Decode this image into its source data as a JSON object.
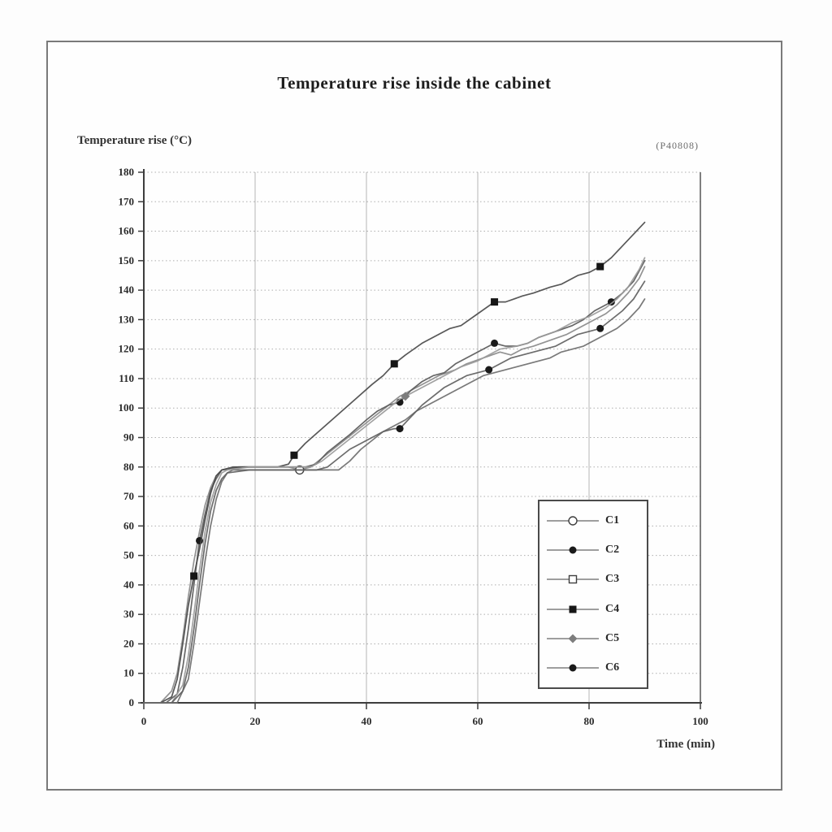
{
  "chart_data": {
    "type": "line",
    "title": "Temperature rise inside the cabinet",
    "ylabel": "Temperature rise (°C)",
    "xlabel": "Time (min)",
    "annotation": "(P40808)",
    "xlim": [
      0,
      100
    ],
    "ylim": [
      0,
      180
    ],
    "x_ticks": [
      0,
      20,
      40,
      60,
      80,
      100
    ],
    "y_tick_step": 10,
    "grid": {
      "vertical_every": 20,
      "horizontal_every": 10,
      "horizontal_style": "dotted"
    },
    "legend_position": "inside-lower-right",
    "series": [
      {
        "name": "C1",
        "marker": "open-circle",
        "color": "#8a8a8a",
        "points": [
          [
            0,
            0
          ],
          [
            3,
            0
          ],
          [
            5,
            4
          ],
          [
            6,
            10
          ],
          [
            7,
            22
          ],
          [
            8,
            36
          ],
          [
            9,
            48
          ],
          [
            10,
            58
          ],
          [
            11,
            67
          ],
          [
            12,
            73
          ],
          [
            13,
            77
          ],
          [
            14,
            79
          ],
          [
            18,
            80
          ],
          [
            22,
            80
          ],
          [
            26,
            80
          ],
          [
            28,
            79
          ],
          [
            30,
            80
          ],
          [
            32,
            83
          ],
          [
            34,
            86
          ],
          [
            36,
            89
          ],
          [
            38,
            92
          ],
          [
            40,
            95
          ],
          [
            42,
            98
          ],
          [
            44,
            101
          ],
          [
            46,
            104
          ],
          [
            48,
            106
          ],
          [
            50,
            108
          ],
          [
            53,
            111
          ],
          [
            56,
            113
          ],
          [
            58,
            115
          ],
          [
            61,
            117
          ],
          [
            64,
            119
          ],
          [
            66,
            118
          ],
          [
            68,
            120
          ],
          [
            70,
            121
          ],
          [
            73,
            123
          ],
          [
            76,
            125
          ],
          [
            79,
            128
          ],
          [
            81,
            130
          ],
          [
            83,
            132
          ],
          [
            85,
            135
          ],
          [
            87,
            139
          ],
          [
            89,
            144
          ],
          [
            90,
            148
          ]
        ],
        "marker_points": [
          [
            28,
            79
          ]
        ]
      },
      {
        "name": "C2",
        "marker": "filled-circle",
        "color": "#5a5a5a",
        "points": [
          [
            0,
            0
          ],
          [
            4,
            0
          ],
          [
            6,
            3
          ],
          [
            7,
            12
          ],
          [
            8,
            25
          ],
          [
            9,
            40
          ],
          [
            10,
            55
          ],
          [
            11,
            64
          ],
          [
            12,
            72
          ],
          [
            13,
            76
          ],
          [
            14,
            79
          ],
          [
            17,
            80
          ],
          [
            21,
            80
          ],
          [
            25,
            80
          ],
          [
            29,
            80
          ],
          [
            31,
            81
          ],
          [
            33,
            85
          ],
          [
            35,
            88
          ],
          [
            37,
            91
          ],
          [
            40,
            96
          ],
          [
            42,
            99
          ],
          [
            44,
            101
          ],
          [
            46,
            102
          ],
          [
            48,
            106
          ],
          [
            50,
            109
          ],
          [
            52,
            111
          ],
          [
            54,
            112
          ],
          [
            56,
            115
          ],
          [
            58,
            117
          ],
          [
            60,
            119
          ],
          [
            62,
            121
          ],
          [
            63,
            122
          ],
          [
            65,
            121
          ],
          [
            67,
            121
          ],
          [
            69,
            122
          ],
          [
            71,
            124
          ],
          [
            74,
            126
          ],
          [
            77,
            128
          ],
          [
            79,
            130
          ],
          [
            81,
            133
          ],
          [
            84,
            136
          ],
          [
            86,
            139
          ],
          [
            88,
            143
          ],
          [
            90,
            150
          ]
        ],
        "marker_points": [
          [
            10,
            55
          ],
          [
            46,
            102
          ],
          [
            63,
            122
          ],
          [
            84,
            136
          ]
        ]
      },
      {
        "name": "C3",
        "marker": "open-square",
        "color": "#6e6e6e",
        "points": [
          [
            0,
            0
          ],
          [
            6,
            0
          ],
          [
            8,
            8
          ],
          [
            9,
            20
          ],
          [
            10,
            34
          ],
          [
            11,
            48
          ],
          [
            12,
            60
          ],
          [
            13,
            69
          ],
          [
            14,
            75
          ],
          [
            15,
            78
          ],
          [
            16,
            79
          ],
          [
            20,
            79
          ],
          [
            24,
            79
          ],
          [
            28,
            79
          ],
          [
            32,
            79
          ],
          [
            35,
            79
          ],
          [
            37,
            82
          ],
          [
            39,
            86
          ],
          [
            41,
            89
          ],
          [
            43,
            92
          ],
          [
            45,
            94
          ],
          [
            47,
            96
          ],
          [
            49,
            99
          ],
          [
            51,
            101
          ],
          [
            53,
            103
          ],
          [
            55,
            105
          ],
          [
            57,
            107
          ],
          [
            59,
            109
          ],
          [
            61,
            111
          ],
          [
            63,
            112
          ],
          [
            65,
            113
          ],
          [
            67,
            114
          ],
          [
            69,
            115
          ],
          [
            71,
            116
          ],
          [
            73,
            117
          ],
          [
            75,
            119
          ],
          [
            77,
            120
          ],
          [
            79,
            121
          ],
          [
            81,
            123
          ],
          [
            83,
            125
          ],
          [
            85,
            127
          ],
          [
            87,
            130
          ],
          [
            89,
            134
          ],
          [
            90,
            137
          ]
        ],
        "marker_points": []
      },
      {
        "name": "C4",
        "marker": "filled-square",
        "color": "#4a4a4a",
        "points": [
          [
            0,
            0
          ],
          [
            3,
            0
          ],
          [
            5,
            2
          ],
          [
            6,
            8
          ],
          [
            7,
            20
          ],
          [
            8,
            33
          ],
          [
            9,
            43
          ],
          [
            10,
            52
          ],
          [
            11,
            62
          ],
          [
            12,
            71
          ],
          [
            13,
            77
          ],
          [
            14,
            79
          ],
          [
            16,
            80
          ],
          [
            20,
            80
          ],
          [
            24,
            80
          ],
          [
            26,
            81
          ],
          [
            27,
            84
          ],
          [
            29,
            88
          ],
          [
            32,
            93
          ],
          [
            35,
            98
          ],
          [
            38,
            103
          ],
          [
            41,
            108
          ],
          [
            43,
            111
          ],
          [
            45,
            115
          ],
          [
            47,
            118
          ],
          [
            50,
            122
          ],
          [
            52,
            124
          ],
          [
            55,
            127
          ],
          [
            57,
            128
          ],
          [
            60,
            132
          ],
          [
            63,
            136
          ],
          [
            65,
            136
          ],
          [
            68,
            138
          ],
          [
            70,
            139
          ],
          [
            73,
            141
          ],
          [
            75,
            142
          ],
          [
            78,
            145
          ],
          [
            80,
            146
          ],
          [
            82,
            148
          ],
          [
            84,
            151
          ],
          [
            86,
            155
          ],
          [
            88,
            159
          ],
          [
            90,
            163
          ]
        ],
        "marker_points": [
          [
            9,
            43
          ],
          [
            27,
            84
          ],
          [
            45,
            115
          ],
          [
            63,
            136
          ],
          [
            82,
            148
          ]
        ]
      },
      {
        "name": "C5",
        "marker": "filled-diamond",
        "color": "#9a9a9a",
        "points": [
          [
            0,
            0
          ],
          [
            5,
            0
          ],
          [
            7,
            6
          ],
          [
            8,
            16
          ],
          [
            9,
            30
          ],
          [
            10,
            45
          ],
          [
            11,
            58
          ],
          [
            12,
            68
          ],
          [
            13,
            74
          ],
          [
            14,
            78
          ],
          [
            15,
            79
          ],
          [
            19,
            80
          ],
          [
            23,
            80
          ],
          [
            27,
            80
          ],
          [
            30,
            80
          ],
          [
            32,
            82
          ],
          [
            34,
            85
          ],
          [
            36,
            88
          ],
          [
            38,
            91
          ],
          [
            40,
            94
          ],
          [
            42,
            97
          ],
          [
            44,
            100
          ],
          [
            46,
            103
          ],
          [
            47,
            104
          ],
          [
            49,
            106
          ],
          [
            51,
            108
          ],
          [
            54,
            111
          ],
          [
            57,
            114
          ],
          [
            60,
            116
          ],
          [
            62,
            118
          ],
          [
            64,
            120
          ],
          [
            67,
            121
          ],
          [
            69,
            122
          ],
          [
            71,
            124
          ],
          [
            74,
            126
          ],
          [
            77,
            129
          ],
          [
            80,
            131
          ],
          [
            83,
            134
          ],
          [
            85,
            137
          ],
          [
            87,
            141
          ],
          [
            89,
            147
          ],
          [
            90,
            151
          ]
        ],
        "marker_points": [
          [
            47,
            104
          ]
        ]
      },
      {
        "name": "C6",
        "marker": "filled-circle",
        "color": "#606060",
        "points": [
          [
            0,
            0
          ],
          [
            5,
            0
          ],
          [
            7,
            4
          ],
          [
            8,
            12
          ],
          [
            9,
            25
          ],
          [
            10,
            40
          ],
          [
            11,
            54
          ],
          [
            12,
            65
          ],
          [
            13,
            72
          ],
          [
            14,
            76
          ],
          [
            15,
            78
          ],
          [
            19,
            79
          ],
          [
            23,
            79
          ],
          [
            27,
            79
          ],
          [
            31,
            79
          ],
          [
            33,
            80
          ],
          [
            35,
            83
          ],
          [
            37,
            86
          ],
          [
            39,
            88
          ],
          [
            41,
            90
          ],
          [
            43,
            92
          ],
          [
            45,
            93
          ],
          [
            46,
            93
          ],
          [
            48,
            97
          ],
          [
            50,
            101
          ],
          [
            52,
            104
          ],
          [
            54,
            107
          ],
          [
            56,
            109
          ],
          [
            58,
            111
          ],
          [
            60,
            112
          ],
          [
            62,
            113
          ],
          [
            64,
            115
          ],
          [
            66,
            117
          ],
          [
            68,
            118
          ],
          [
            70,
            119
          ],
          [
            72,
            120
          ],
          [
            74,
            121
          ],
          [
            76,
            123
          ],
          [
            78,
            125
          ],
          [
            80,
            126
          ],
          [
            82,
            127
          ],
          [
            84,
            130
          ],
          [
            86,
            133
          ],
          [
            88,
            137
          ],
          [
            90,
            143
          ]
        ],
        "marker_points": [
          [
            46,
            93
          ],
          [
            62,
            113
          ],
          [
            82,
            127
          ]
        ]
      }
    ]
  }
}
